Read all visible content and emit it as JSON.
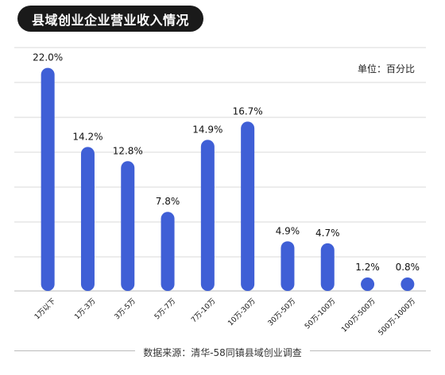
{
  "header": {
    "title": "县域创业企业营业收入情况",
    "unit": "单位：百分比"
  },
  "footer": {
    "source": "数据来源：清华-58同镇县域创业调查"
  },
  "colors": {
    "bar": "#3f5fd6",
    "grid": "#d8d8d8",
    "title_bg": "#1a1a1a"
  },
  "chart_data": {
    "type": "bar",
    "title": "县域创业企业营业收入情况",
    "xlabel": "",
    "ylabel": "",
    "ylim": [
      0,
      24
    ],
    "grid": true,
    "categories": [
      "1万以下",
      "1万-3万",
      "3万-5万",
      "5万-7万",
      "7万-10万",
      "10万-30万",
      "30万-50万",
      "50万-100万",
      "100万-500万",
      "500万-1000万"
    ],
    "values": [
      22.0,
      14.2,
      12.8,
      7.8,
      14.9,
      16.7,
      4.9,
      4.7,
      1.2,
      0.8
    ],
    "value_labels": [
      "22.0%",
      "14.2%",
      "12.8%",
      "7.8%",
      "14.9%",
      "16.7%",
      "4.9%",
      "4.7%",
      "1.2%",
      "0.8%"
    ]
  }
}
